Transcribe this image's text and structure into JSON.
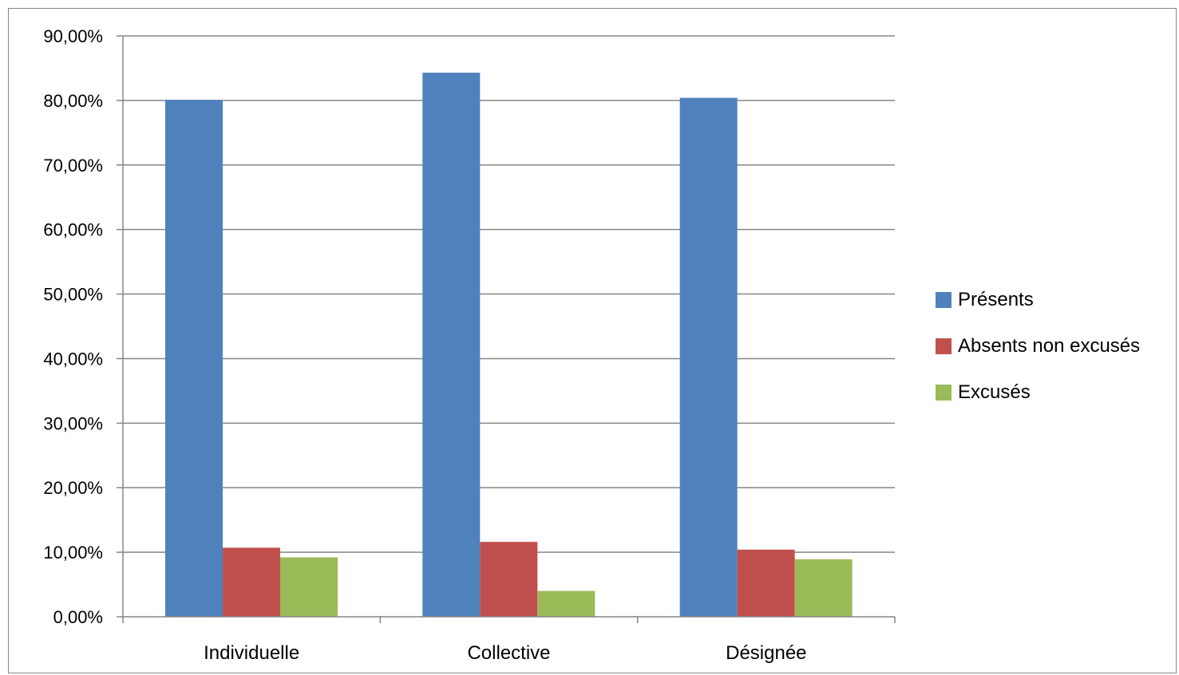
{
  "chart_data": {
    "type": "bar",
    "title": "",
    "xlabel": "",
    "ylabel": "",
    "categories": [
      "Individuelle",
      "Collective",
      "Désignée"
    ],
    "series": [
      {
        "name": "Présents",
        "color": "#4F81BD",
        "values": [
          80.1,
          84.3,
          80.4
        ]
      },
      {
        "name": "Absents non excusés",
        "color": "#C0504D",
        "values": [
          10.7,
          11.6,
          10.4
        ]
      },
      {
        "name": "Excusés",
        "color": "#9BBB59",
        "values": [
          9.2,
          4.0,
          8.9
        ]
      }
    ],
    "ylim": [
      0,
      90
    ],
    "ytick_step": 10,
    "ytick_labels": [
      "0,00%",
      "10,00%",
      "20,00%",
      "30,00%",
      "40,00%",
      "50,00%",
      "60,00%",
      "70,00%",
      "80,00%",
      "90,00%"
    ],
    "grid": true,
    "legend_position": "right",
    "gridline_color": "#868686",
    "axis_color": "#868686"
  }
}
